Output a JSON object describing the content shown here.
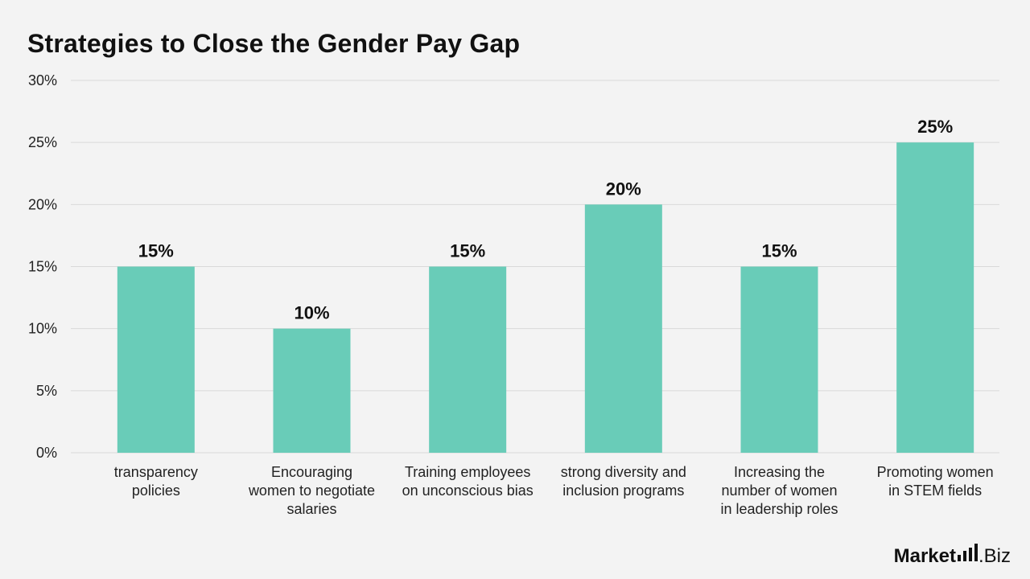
{
  "chart_data": {
    "type": "bar",
    "title": "Strategies to Close the Gender Pay Gap",
    "categories": [
      [
        "transparency",
        "policies"
      ],
      [
        "Encouraging",
        "women to negotiate",
        "salaries"
      ],
      [
        "Training employees",
        "on unconscious bias"
      ],
      [
        "strong diversity and",
        "inclusion programs"
      ],
      [
        "Increasing the",
        "number of women",
        "in leadership roles"
      ],
      [
        "Promoting women",
        "in STEM fields"
      ]
    ],
    "values": [
      15,
      10,
      15,
      20,
      15,
      25
    ],
    "value_labels": [
      "15%",
      "10%",
      "15%",
      "20%",
      "15%",
      "25%"
    ],
    "ylim": [
      0,
      30
    ],
    "yticks": [
      0,
      5,
      10,
      15,
      20,
      25,
      30
    ],
    "ytick_labels": [
      "0%",
      "5%",
      "10%",
      "15%",
      "20%",
      "25%",
      "30%"
    ],
    "xlabel": "",
    "ylabel": "",
    "grid": true,
    "legend": "none",
    "bar_color": "#69ccb8",
    "grid_color": "#d9d9d9"
  },
  "brand": {
    "market": "Market",
    "biz": ".Biz"
  }
}
